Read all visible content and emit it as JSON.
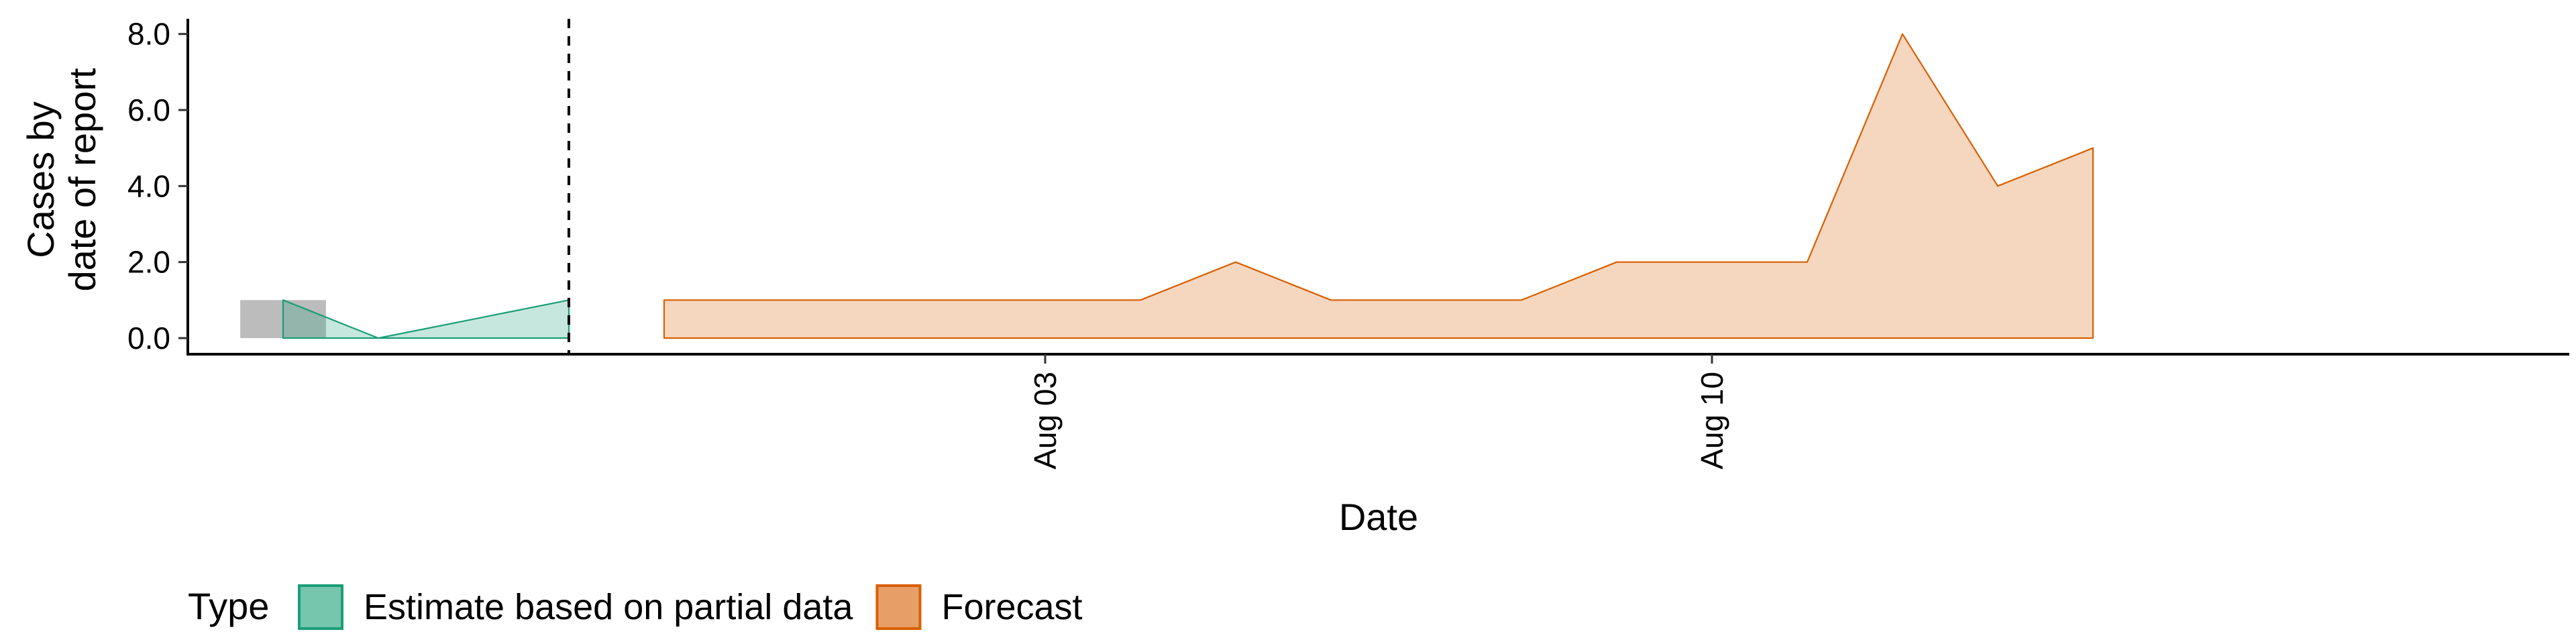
{
  "chart_data": {
    "type": "area",
    "xlabel": "Date",
    "ylabel_lines": [
      "Cases by",
      "date of report"
    ],
    "x_ticks": [
      {
        "date": "2020-08-03",
        "label": "Aug 03"
      },
      {
        "date": "2020-08-10",
        "label": "Aug 10"
      }
    ],
    "xlim": [
      "2020-07-25",
      "2020-08-19"
    ],
    "y_ticks": [
      {
        "value": 0,
        "label": "0.0"
      },
      {
        "value": 2,
        "label": "2.0"
      },
      {
        "value": 4,
        "label": "4.0"
      },
      {
        "value": 6,
        "label": "6.0"
      },
      {
        "value": 8,
        "label": "8.0"
      }
    ],
    "ylim": [
      0,
      8.4
    ],
    "grid": false,
    "forecast_start_marker": "2020-07-29",
    "observed_bars": [
      {
        "date": "2020-07-26",
        "value": 1
      }
    ],
    "series": [
      {
        "name": "Estimate based on partial data",
        "color": "#1b9e77",
        "points": [
          {
            "date": "2020-07-26",
            "value": 1
          },
          {
            "date": "2020-07-27",
            "value": 0
          },
          {
            "date": "2020-07-28",
            "value": 0.5
          },
          {
            "date": "2020-07-29",
            "value": 1
          }
        ]
      },
      {
        "name": "Forecast",
        "color": "#d95f02",
        "points": [
          {
            "date": "2020-07-30",
            "value": 1
          },
          {
            "date": "2020-07-31",
            "value": 1
          },
          {
            "date": "2020-08-01",
            "value": 1
          },
          {
            "date": "2020-08-02",
            "value": 1
          },
          {
            "date": "2020-08-03",
            "value": 1
          },
          {
            "date": "2020-08-04",
            "value": 1
          },
          {
            "date": "2020-08-05",
            "value": 2
          },
          {
            "date": "2020-08-06",
            "value": 1
          },
          {
            "date": "2020-08-07",
            "value": 1
          },
          {
            "date": "2020-08-08",
            "value": 1
          },
          {
            "date": "2020-08-09",
            "value": 2
          },
          {
            "date": "2020-08-10",
            "value": 2
          },
          {
            "date": "2020-08-11",
            "value": 2
          },
          {
            "date": "2020-08-12",
            "value": 8
          },
          {
            "date": "2020-08-13",
            "value": 4
          },
          {
            "date": "2020-08-14",
            "value": 5
          }
        ]
      }
    ],
    "legend": {
      "title": "Type",
      "position": "bottom-left",
      "items": [
        "Estimate based on partial data",
        "Forecast"
      ]
    }
  }
}
